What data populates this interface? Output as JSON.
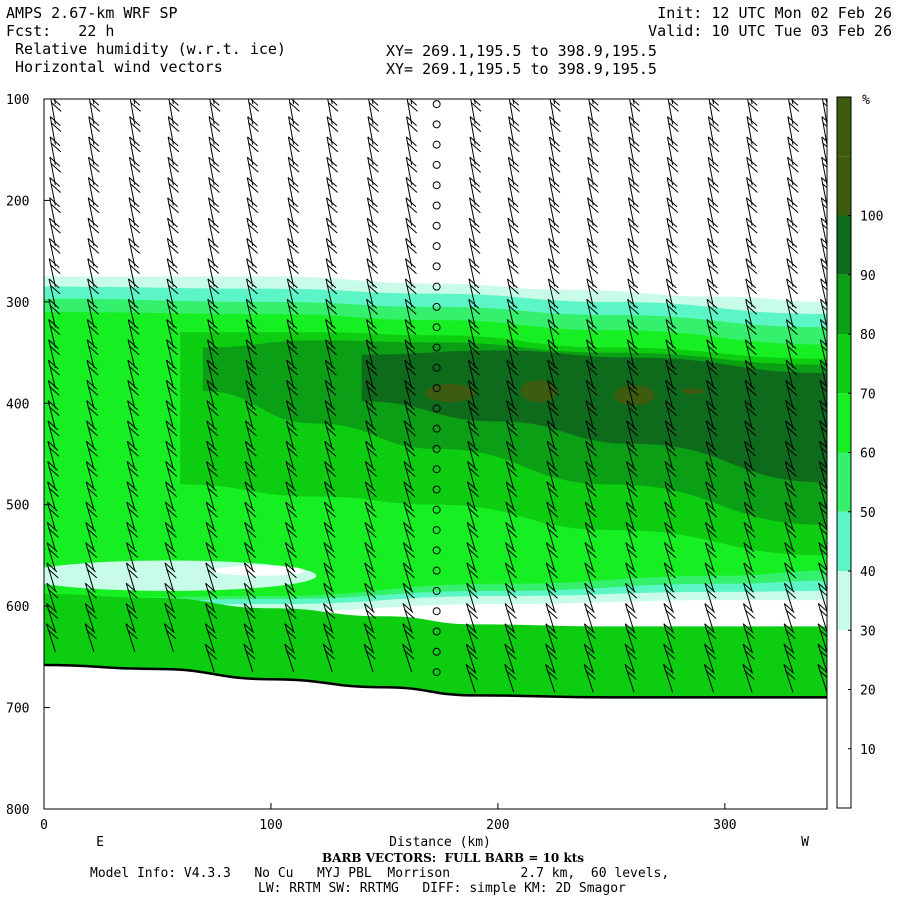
{
  "header": {
    "model_title": "AMPS 2.67-km WRF SP",
    "fcst_label": "Fcst:",
    "fcst_value": "22 h",
    "field1": "Relative humidity (w.r.t. ice)",
    "field2": "Horizontal wind vectors",
    "xy1": "XY= 269.1,195.5 to 398.9,195.5",
    "xy2": "XY= 269.1,195.5 to 398.9,195.5",
    "init": "Init: 12 UTC Mon 02 Feb 26",
    "valid": "Valid: 10 UTC Tue 03 Feb 26"
  },
  "footer": {
    "barb_note": "BARB VECTORS:  FULL BARB = 10 kts",
    "model_info": "Model Info: V4.3.3   No Cu   MYJ PBL  Morrison         2.7 km,  60 levels,",
    "physics": "LW: RRTM SW: RRTMG   DIFF: simple KM: 2D Smagor"
  },
  "colors": {
    "rh_levels": [
      "#ffffff",
      "#ffffff",
      "#ffffff",
      "#c8fce9",
      "#5cf6c6",
      "#35f06c",
      "#16f022",
      "#0ccd10",
      "#0b9f15",
      "#0e6b1c",
      "#3d5c10"
    ],
    "terrain_line": "#000000",
    "barb": "#000000"
  },
  "chart_data": {
    "type": "heatmap",
    "title": "Relative humidity (w.r.t. ice)",
    "subtitle": "Horizontal wind vectors",
    "xlabel": "Distance (km)",
    "ylabel": "",
    "x_range": [
      0,
      345
    ],
    "y_range": [
      100,
      800
    ],
    "y_scale": "pressure (inverted)",
    "x_ticks": [
      0,
      100,
      200,
      300
    ],
    "y_ticks": [
      100,
      200,
      300,
      400,
      500,
      600,
      700,
      800
    ],
    "x_end_labels": [
      "E",
      "W"
    ],
    "colorbar": {
      "unit": "%",
      "ticks": [
        10,
        20,
        30,
        40,
        50,
        60,
        70,
        80,
        90,
        100
      ],
      "levels": [
        0,
        10,
        20,
        30,
        40,
        50,
        60,
        70,
        80,
        90,
        100,
        110
      ]
    },
    "rh_contours": [
      {
        "level": 30,
        "top": [
          [
            0,
            275
          ],
          [
            100,
            275
          ],
          [
            173,
            282
          ],
          [
            230,
            288
          ],
          [
            300,
            295
          ],
          [
            345,
            300
          ]
        ],
        "bottom": [
          [
            0,
            610
          ],
          [
            100,
            605
          ],
          [
            200,
            598
          ],
          [
            300,
            594
          ],
          [
            345,
            594
          ]
        ]
      },
      {
        "level": 40,
        "top": [
          [
            0,
            285
          ],
          [
            100,
            287
          ],
          [
            173,
            292
          ],
          [
            250,
            300
          ],
          [
            345,
            312
          ]
        ],
        "bottom": [
          [
            0,
            603
          ],
          [
            100,
            598
          ],
          [
            200,
            590
          ],
          [
            300,
            586
          ],
          [
            345,
            585
          ]
        ]
      },
      {
        "level": 50,
        "top": [
          [
            0,
            297
          ],
          [
            100,
            300
          ],
          [
            173,
            305
          ],
          [
            250,
            313
          ],
          [
            345,
            325
          ]
        ],
        "bottom": [
          [
            0,
            598
          ],
          [
            100,
            593
          ],
          [
            200,
            585
          ],
          [
            300,
            578
          ],
          [
            345,
            575
          ]
        ]
      },
      {
        "level": 60,
        "top": [
          [
            0,
            310
          ],
          [
            100,
            312
          ],
          [
            173,
            318
          ],
          [
            250,
            328
          ],
          [
            345,
            342
          ]
        ],
        "bottom": [
          [
            0,
            593
          ],
          [
            100,
            590
          ],
          [
            200,
            578
          ],
          [
            300,
            570
          ],
          [
            345,
            565
          ]
        ]
      },
      {
        "level": 70,
        "top": [
          [
            60,
            330
          ],
          [
            120,
            330
          ],
          [
            173,
            333
          ],
          [
            250,
            345
          ],
          [
            345,
            356
          ]
        ],
        "bottom": [
          [
            60,
            480
          ],
          [
            120,
            492
          ],
          [
            173,
            500
          ],
          [
            250,
            525
          ],
          [
            345,
            550
          ]
        ]
      },
      {
        "level": 80,
        "top": [
          [
            70,
            345
          ],
          [
            120,
            338
          ],
          [
            173,
            340
          ],
          [
            250,
            350
          ],
          [
            345,
            362
          ]
        ],
        "bottom": [
          [
            70,
            388
          ],
          [
            120,
            420
          ],
          [
            173,
            445
          ],
          [
            250,
            480
          ],
          [
            345,
            520
          ]
        ]
      },
      {
        "level": 90,
        "top": [
          [
            140,
            352
          ],
          [
            200,
            348
          ],
          [
            260,
            355
          ],
          [
            345,
            370
          ]
        ],
        "bottom": [
          [
            140,
            398
          ],
          [
            200,
            418
          ],
          [
            260,
            440
          ],
          [
            345,
            478
          ]
        ]
      },
      {
        "level": 100,
        "patches": [
          [
            179,
            390,
            22,
            18
          ],
          [
            218,
            388,
            16,
            22
          ],
          [
            260,
            392,
            18,
            20
          ],
          [
            286,
            388,
            10,
            6
          ]
        ]
      }
    ],
    "dry_pockets": [
      {
        "center": [
          55,
          570
        ],
        "width": 130,
        "height": 30,
        "level": 30
      },
      {
        "center": [
          95,
          565
        ],
        "width": 40,
        "height": 10,
        "level": 20
      }
    ],
    "surface_pressure": [
      [
        0,
        658
      ],
      [
        50,
        662
      ],
      [
        100,
        672
      ],
      [
        150,
        680
      ],
      [
        190,
        688
      ],
      [
        250,
        690
      ],
      [
        345,
        690
      ]
    ],
    "wind_barb_columns_x_km": [
      5,
      22,
      40,
      57,
      75,
      92,
      110,
      127,
      145,
      162,
      173,
      190,
      207,
      225,
      242,
      260,
      277,
      295,
      312,
      330,
      345
    ],
    "calm_column_x_km": 173,
    "barb_speed_kts": [
      20,
      20,
      20,
      20,
      20,
      20,
      20,
      20,
      20,
      20,
      0,
      20,
      20,
      20,
      20,
      20,
      20,
      20,
      20,
      20,
      20
    ]
  }
}
